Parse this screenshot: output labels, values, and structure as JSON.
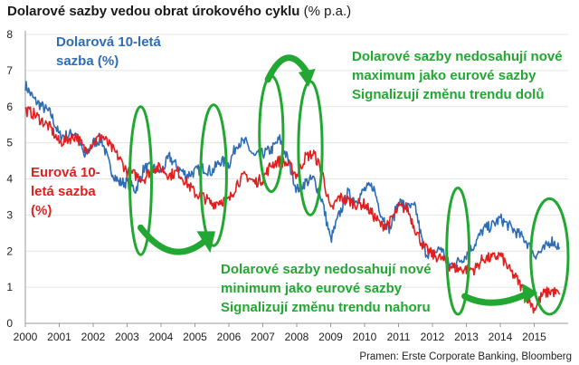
{
  "title": {
    "main": "Dolarové sazby vedou obrat úrokového cyklu",
    "unit": "(% p.a.)"
  },
  "source": "Pramen: Erste Corporate Banking, Bloomberg",
  "labels": {
    "usd": [
      "Dolarová 10-letá",
      "sazba (%)"
    ],
    "eur": [
      "Eurová 10-",
      "letá sazba",
      "(%)"
    ],
    "top_note": [
      "Dolarové sazby nedosahují nové",
      "maximum jako eurové sazby",
      "Signalizují změnu trendu dolů"
    ],
    "bottom_note": [
      "Dolarové sazby nedosahují nové",
      "minimum jako eurové sazby",
      "Signalizují změnu trendu nahoru"
    ]
  },
  "colors": {
    "usd": "#2e6db4",
    "eur": "#e02020",
    "annotation": "#22a832"
  },
  "chart_data": {
    "type": "line",
    "title": "Dolarové sazby vedou obrat úrokového cyklu (% p.a.)",
    "xlabel": "",
    "ylabel": "",
    "xlim": [
      2000,
      2016
    ],
    "ylim": [
      0,
      8
    ],
    "x_ticks": [
      "2000",
      "2001",
      "2002",
      "2003",
      "2004",
      "2005",
      "2006",
      "2007",
      "2008",
      "2009",
      "2010",
      "2011",
      "2012",
      "2013",
      "2014",
      "2015"
    ],
    "y_ticks": [
      "0",
      "1",
      "2",
      "3",
      "4",
      "5",
      "6",
      "7",
      "8"
    ],
    "series": [
      {
        "name": "Dolarová 10-letá sazba (%)",
        "x": [
          2000.0,
          2000.25,
          2000.5,
          2000.75,
          2001.0,
          2001.25,
          2001.5,
          2001.75,
          2002.0,
          2002.25,
          2002.5,
          2002.75,
          2003.0,
          2003.25,
          2003.5,
          2003.75,
          2004.0,
          2004.25,
          2004.5,
          2004.75,
          2005.0,
          2005.25,
          2005.5,
          2005.75,
          2006.0,
          2006.25,
          2006.5,
          2006.75,
          2007.0,
          2007.25,
          2007.5,
          2007.75,
          2008.0,
          2008.25,
          2008.5,
          2008.75,
          2009.0,
          2009.25,
          2009.5,
          2009.75,
          2010.0,
          2010.25,
          2010.5,
          2010.75,
          2011.0,
          2011.25,
          2011.5,
          2011.75,
          2012.0,
          2012.25,
          2012.5,
          2012.75,
          2013.0,
          2013.25,
          2013.5,
          2013.75,
          2014.0,
          2014.25,
          2014.5,
          2014.75,
          2015.0,
          2015.25,
          2015.5,
          2015.75
        ],
        "values": [
          6.6,
          6.2,
          6.0,
          5.8,
          5.2,
          5.2,
          5.3,
          4.6,
          5.0,
          5.1,
          4.3,
          3.9,
          3.9,
          3.7,
          4.3,
          4.3,
          4.2,
          4.6,
          4.3,
          4.1,
          4.2,
          4.3,
          4.2,
          4.5,
          4.4,
          5.0,
          5.0,
          4.6,
          4.7,
          4.8,
          5.1,
          4.5,
          3.7,
          3.9,
          4.0,
          3.4,
          2.3,
          3.0,
          3.6,
          3.4,
          3.7,
          3.8,
          3.0,
          2.6,
          3.4,
          3.2,
          3.2,
          2.0,
          1.9,
          2.1,
          1.6,
          1.7,
          1.9,
          2.2,
          2.6,
          2.7,
          2.9,
          2.7,
          2.5,
          2.3,
          1.9,
          2.0,
          2.3,
          2.1
        ]
      },
      {
        "name": "Eurová 10-letá sazba (%)",
        "x": [
          2000.0,
          2000.25,
          2000.5,
          2000.75,
          2001.0,
          2001.25,
          2001.5,
          2001.75,
          2002.0,
          2002.25,
          2002.5,
          2002.75,
          2003.0,
          2003.25,
          2003.5,
          2003.75,
          2004.0,
          2004.25,
          2004.5,
          2004.75,
          2005.0,
          2005.25,
          2005.5,
          2005.75,
          2006.0,
          2006.25,
          2006.5,
          2006.75,
          2007.0,
          2007.25,
          2007.5,
          2007.75,
          2008.0,
          2008.25,
          2008.5,
          2008.75,
          2009.0,
          2009.25,
          2009.5,
          2009.75,
          2010.0,
          2010.25,
          2010.5,
          2010.75,
          2011.0,
          2011.25,
          2011.5,
          2011.75,
          2012.0,
          2012.25,
          2012.5,
          2012.75,
          2013.0,
          2013.25,
          2013.5,
          2013.75,
          2014.0,
          2014.25,
          2014.5,
          2014.75,
          2015.0,
          2015.25,
          2015.5,
          2015.75
        ],
        "values": [
          5.9,
          5.8,
          5.6,
          5.4,
          5.0,
          5.1,
          5.2,
          4.8,
          5.0,
          5.2,
          4.9,
          4.6,
          4.2,
          4.1,
          4.0,
          4.3,
          4.3,
          4.1,
          4.2,
          3.9,
          3.6,
          3.5,
          3.3,
          3.4,
          3.4,
          3.9,
          4.1,
          3.9,
          4.0,
          4.4,
          4.5,
          4.4,
          4.1,
          4.6,
          4.7,
          4.2,
          3.1,
          3.5,
          3.4,
          3.3,
          3.3,
          3.0,
          2.7,
          2.8,
          3.2,
          3.2,
          2.6,
          2.1,
          1.9,
          1.8,
          1.6,
          1.5,
          1.5,
          1.5,
          1.8,
          1.8,
          1.9,
          1.5,
          1.2,
          0.8,
          0.4,
          0.8,
          0.9,
          0.8
        ]
      }
    ],
    "annotations": [
      "Dolarové sazby nedosahují nové maximum jako eurové sazby. Signalizují změnu trendu dolů",
      "Dolarové sazby nedosahují nové minimum jako eurové sazby. Signalizují změnu trendu nahoru"
    ]
  }
}
